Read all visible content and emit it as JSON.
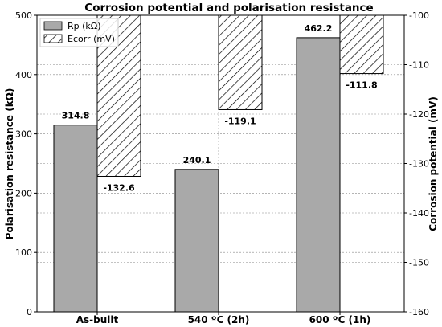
{
  "chart_data": {
    "type": "bar",
    "title": "Corrosion potential and polarisation resistance",
    "categories": [
      "As-built",
      "540 ºC (2h)",
      "600 ºC (1h)"
    ],
    "series": [
      {
        "name": "Rp (kΩ)",
        "axis": "left",
        "values": [
          314.8,
          240.1,
          462.2
        ],
        "labels": [
          "314.8",
          "240.1",
          "462.2"
        ],
        "fill": "solid gray"
      },
      {
        "name": "Ecorr (mV)",
        "axis": "right",
        "values": [
          -132.6,
          -119.1,
          -111.8
        ],
        "labels": [
          "-132.6",
          "-119.1",
          "-111.8"
        ],
        "fill": "hatched"
      }
    ],
    "ylabel": "Polarisation resistance (kΩ)",
    "y2label": "Corrosion potential (mV)",
    "ylim": [
      0,
      500
    ],
    "y2lim": [
      -160,
      -100
    ],
    "yticks": [
      0,
      100,
      200,
      300,
      400,
      500
    ],
    "y2ticks": [
      -160,
      -150,
      -140,
      -130,
      -120,
      -110,
      -100
    ],
    "grid": true,
    "legend_position": "top-left",
    "colors": {
      "rp_bar": "#a9a9a9",
      "edge": "#000000",
      "grid": "#888888"
    }
  }
}
